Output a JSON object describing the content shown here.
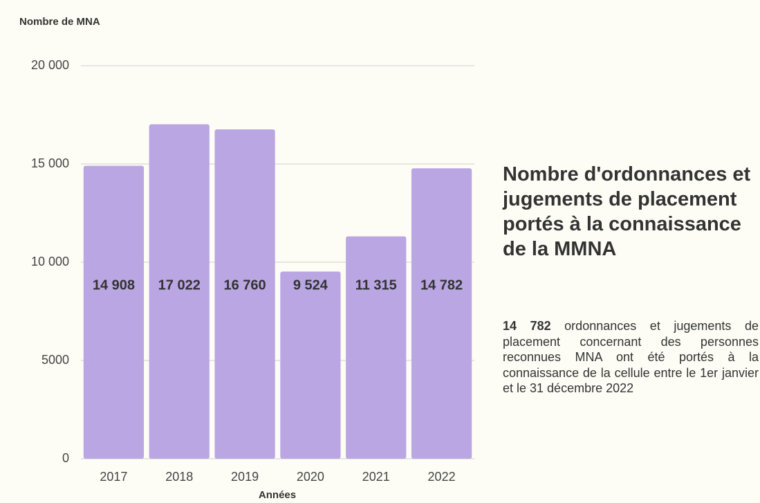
{
  "chart_data": {
    "type": "bar",
    "y_axis_label": "Nombre de MNA",
    "x_axis_label": "Années",
    "categories": [
      "2017",
      "2018",
      "2019",
      "2020",
      "2021",
      "2022"
    ],
    "values": [
      14908,
      17022,
      16760,
      9524,
      11315,
      14782
    ],
    "value_labels": [
      "14 908",
      "17 022",
      "16 760",
      "9 524",
      "11 315",
      "14 782"
    ],
    "color": "#b9a6e3",
    "ylim": [
      0,
      20000
    ],
    "yticks": [
      0,
      5000,
      {
        "value": 10000,
        "label": "10 000"
      },
      {
        "value": 15000,
        "label": "15 000"
      },
      {
        "value": 20000,
        "label": "20 000"
      }
    ],
    "grid": true
  },
  "side": {
    "title": "Nombre d'ordonnances et jugements de placement portés à la connaissance de la MMNA",
    "highlight": "14 782",
    "text": "ordonnances et jugements de placement concernant des personnes reconnues MNA ont été portés à la connaissance de la cellule entre le 1er janvier et le 31 décembre 2022"
  }
}
